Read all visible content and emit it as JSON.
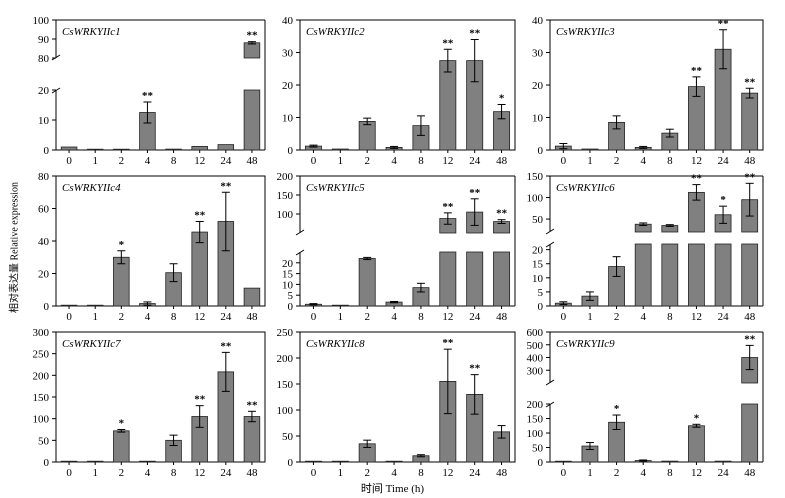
{
  "ylabel": "相对表达量 Relative expression",
  "xlabel": "时间 Time (h)",
  "chart_data": [
    {
      "type": "bar",
      "title": "CsWRKYIIc1",
      "categories": [
        "0",
        "1",
        "2",
        "4",
        "8",
        "12",
        "24",
        "48"
      ],
      "values": [
        1,
        0,
        0,
        12.5,
        0.3,
        1.2,
        1.8,
        88
      ],
      "errors": [
        0,
        0,
        0,
        3.5,
        0,
        0,
        0,
        0.6
      ],
      "significance": [
        "",
        "",
        "",
        "**",
        "",
        "",
        "",
        "**"
      ],
      "broken_axis": {
        "lower": [
          0,
          20
        ],
        "upper": [
          80,
          100
        ]
      },
      "lower_ticks": [
        0,
        10,
        20
      ],
      "upper_ticks": [
        80,
        90,
        100
      ]
    },
    {
      "type": "bar",
      "title": "CsWRKYIIc2",
      "categories": [
        "0",
        "1",
        "2",
        "4",
        "8",
        "12",
        "24",
        "48"
      ],
      "values": [
        1.2,
        0.3,
        8.8,
        0.8,
        7.5,
        27.5,
        27.5,
        11.8
      ],
      "errors": [
        0.3,
        0,
        1,
        0.3,
        3,
        3.5,
        6.5,
        2.2
      ],
      "significance": [
        "",
        "",
        "",
        "",
        "",
        "**",
        "**",
        "*"
      ],
      "ylim": [
        0,
        40
      ],
      "ticks": [
        0,
        10,
        20,
        30,
        40
      ]
    },
    {
      "type": "bar",
      "title": "CsWRKYIIc3",
      "categories": [
        "0",
        "1",
        "2",
        "4",
        "8",
        "12",
        "24",
        "48"
      ],
      "values": [
        1.2,
        0.3,
        8.5,
        0.8,
        5.2,
        19.5,
        31,
        17.5
      ],
      "errors": [
        0.8,
        0,
        2,
        0.3,
        1.2,
        3,
        6,
        1.5
      ],
      "significance": [
        "",
        "",
        "",
        "",
        "",
        "**",
        "**",
        "**"
      ],
      "ylim": [
        0,
        40
      ],
      "ticks": [
        0,
        10,
        20,
        30,
        40
      ]
    },
    {
      "type": "bar",
      "title": "CsWRKYIIc4",
      "categories": [
        "0",
        "1",
        "2",
        "4",
        "8",
        "12",
        "24",
        "48"
      ],
      "values": [
        0.5,
        0.5,
        30,
        1.5,
        20.5,
        45.5,
        52,
        11
      ],
      "errors": [
        0,
        0,
        4,
        1,
        5.5,
        6.5,
        18,
        0
      ],
      "significance": [
        "",
        "",
        "*",
        "",
        "",
        "**",
        "**",
        ""
      ],
      "ylim": [
        0,
        80
      ],
      "ticks": [
        0,
        20,
        40,
        60,
        80
      ]
    },
    {
      "type": "bar",
      "title": "CsWRKYIIc5",
      "categories": [
        "0",
        "1",
        "2",
        "4",
        "8",
        "12",
        "24",
        "48"
      ],
      "values": [
        0.8,
        0.2,
        22,
        1.8,
        8.5,
        88,
        105,
        80
      ],
      "errors": [
        0.3,
        0,
        0.5,
        0.3,
        2,
        15,
        35,
        5
      ],
      "significance": [
        "",
        "",
        "",
        "",
        "",
        "**",
        "**",
        "**"
      ],
      "broken_axis": {
        "lower": [
          0,
          25
        ],
        "upper": [
          50,
          200
        ]
      },
      "lower_ticks": [
        0,
        5,
        10,
        15,
        20
      ],
      "upper_ticks": [
        100,
        150,
        200
      ]
    },
    {
      "type": "bar",
      "title": "CsWRKYIIc6",
      "categories": [
        "0",
        "1",
        "2",
        "4",
        "8",
        "12",
        "24",
        "48"
      ],
      "values": [
        1,
        3.5,
        14,
        38,
        35,
        112,
        60,
        95
      ],
      "errors": [
        0.5,
        1.5,
        3.5,
        3,
        2,
        18,
        20,
        38
      ],
      "significance": [
        "",
        "",
        "",
        "",
        "",
        "**",
        "*",
        "**"
      ],
      "broken_axis": {
        "lower": [
          0,
          22
        ],
        "upper": [
          20,
          150
        ]
      },
      "lower_ticks": [
        0,
        5,
        10,
        15,
        20
      ],
      "upper_ticks": [
        50,
        100,
        150
      ]
    },
    {
      "type": "bar",
      "title": "CsWRKYIIc7",
      "categories": [
        "0",
        "1",
        "2",
        "4",
        "8",
        "12",
        "24",
        "48"
      ],
      "values": [
        1,
        0,
        72,
        1.5,
        50,
        105,
        208,
        105
      ],
      "errors": [
        0,
        0,
        3,
        0,
        12,
        25,
        45,
        12
      ],
      "significance": [
        "",
        "",
        "*",
        "",
        "",
        "**",
        "**",
        "**"
      ],
      "ylim": [
        0,
        300
      ],
      "ticks": [
        0,
        50,
        100,
        150,
        200,
        250,
        300
      ]
    },
    {
      "type": "bar",
      "title": "CsWRKYIIc8",
      "categories": [
        "0",
        "1",
        "2",
        "4",
        "8",
        "12",
        "24",
        "48"
      ],
      "values": [
        0.5,
        0.5,
        35,
        0,
        12,
        155,
        130,
        58
      ],
      "errors": [
        0,
        0,
        7,
        0,
        2,
        62,
        38,
        12
      ],
      "significance": [
        "",
        "",
        "",
        "",
        "",
        "**",
        "**",
        ""
      ],
      "ylim": [
        0,
        250
      ],
      "ticks": [
        0,
        50,
        100,
        150,
        200,
        250
      ]
    },
    {
      "type": "bar",
      "title": "CsWRKYIIc9",
      "categories": [
        "0",
        "1",
        "2",
        "4",
        "8",
        "12",
        "24",
        "48"
      ],
      "values": [
        0.5,
        55,
        137,
        5,
        3,
        125,
        3,
        400
      ],
      "errors": [
        0,
        12,
        25,
        2,
        0,
        5,
        0,
        95
      ],
      "significance": [
        "",
        "",
        "*",
        "",
        "",
        "*",
        "",
        "**"
      ],
      "broken_axis": {
        "lower": [
          0,
          200
        ],
        "upper": [
          200,
          600
        ]
      },
      "lower_ticks": [
        0,
        50,
        100,
        150,
        200
      ],
      "upper_ticks": [
        300,
        400,
        500,
        600
      ]
    }
  ]
}
